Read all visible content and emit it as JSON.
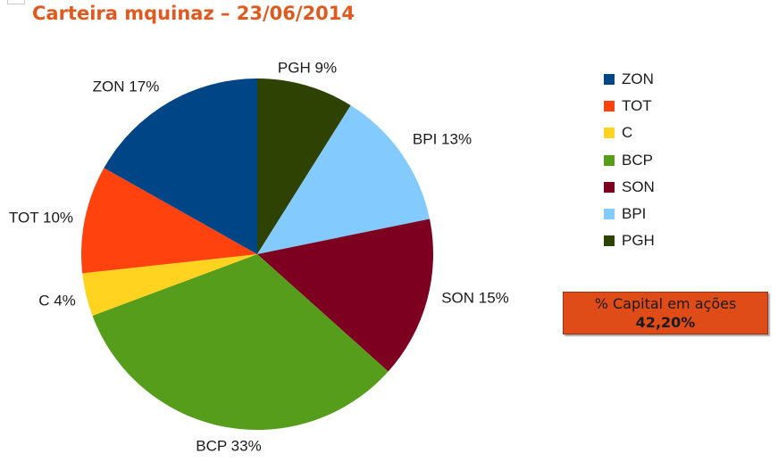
{
  "header": {
    "title": "Carteira mquinaz – 23/06/2014"
  },
  "chart_data": {
    "type": "pie",
    "slices": [
      {
        "name": "PGH",
        "value": 9,
        "label": "PGH 9%",
        "color": "#2e4204"
      },
      {
        "name": "BPI",
        "value": 13,
        "label": "BPI 13%",
        "color": "#83caff"
      },
      {
        "name": "SON",
        "value": 15,
        "label": "SON 15%",
        "color": "#7e0021"
      },
      {
        "name": "BCP",
        "value": 33,
        "label": "BCP 33%",
        "color": "#579d1c"
      },
      {
        "name": "C",
        "value": 4,
        "label": "C 4%",
        "color": "#ffd320"
      },
      {
        "name": "TOT",
        "value": 10,
        "label": "TOT 10%",
        "color": "#ff420e"
      },
      {
        "name": "ZON",
        "value": 17,
        "label": "ZON 17%",
        "color": "#004586"
      }
    ],
    "legend": [
      {
        "name": "ZON",
        "color": "#004586"
      },
      {
        "name": "TOT",
        "color": "#ff420e"
      },
      {
        "name": "C",
        "color": "#ffd320"
      },
      {
        "name": "BCP",
        "color": "#579d1c"
      },
      {
        "name": "SON",
        "color": "#7e0021"
      },
      {
        "name": "BPI",
        "color": "#83caff"
      },
      {
        "name": "PGH",
        "color": "#2e4204"
      }
    ],
    "legend_position": "right"
  },
  "capital_box": {
    "label": "% Capital em ações",
    "value": "42,20%",
    "color": "#e04c18"
  }
}
